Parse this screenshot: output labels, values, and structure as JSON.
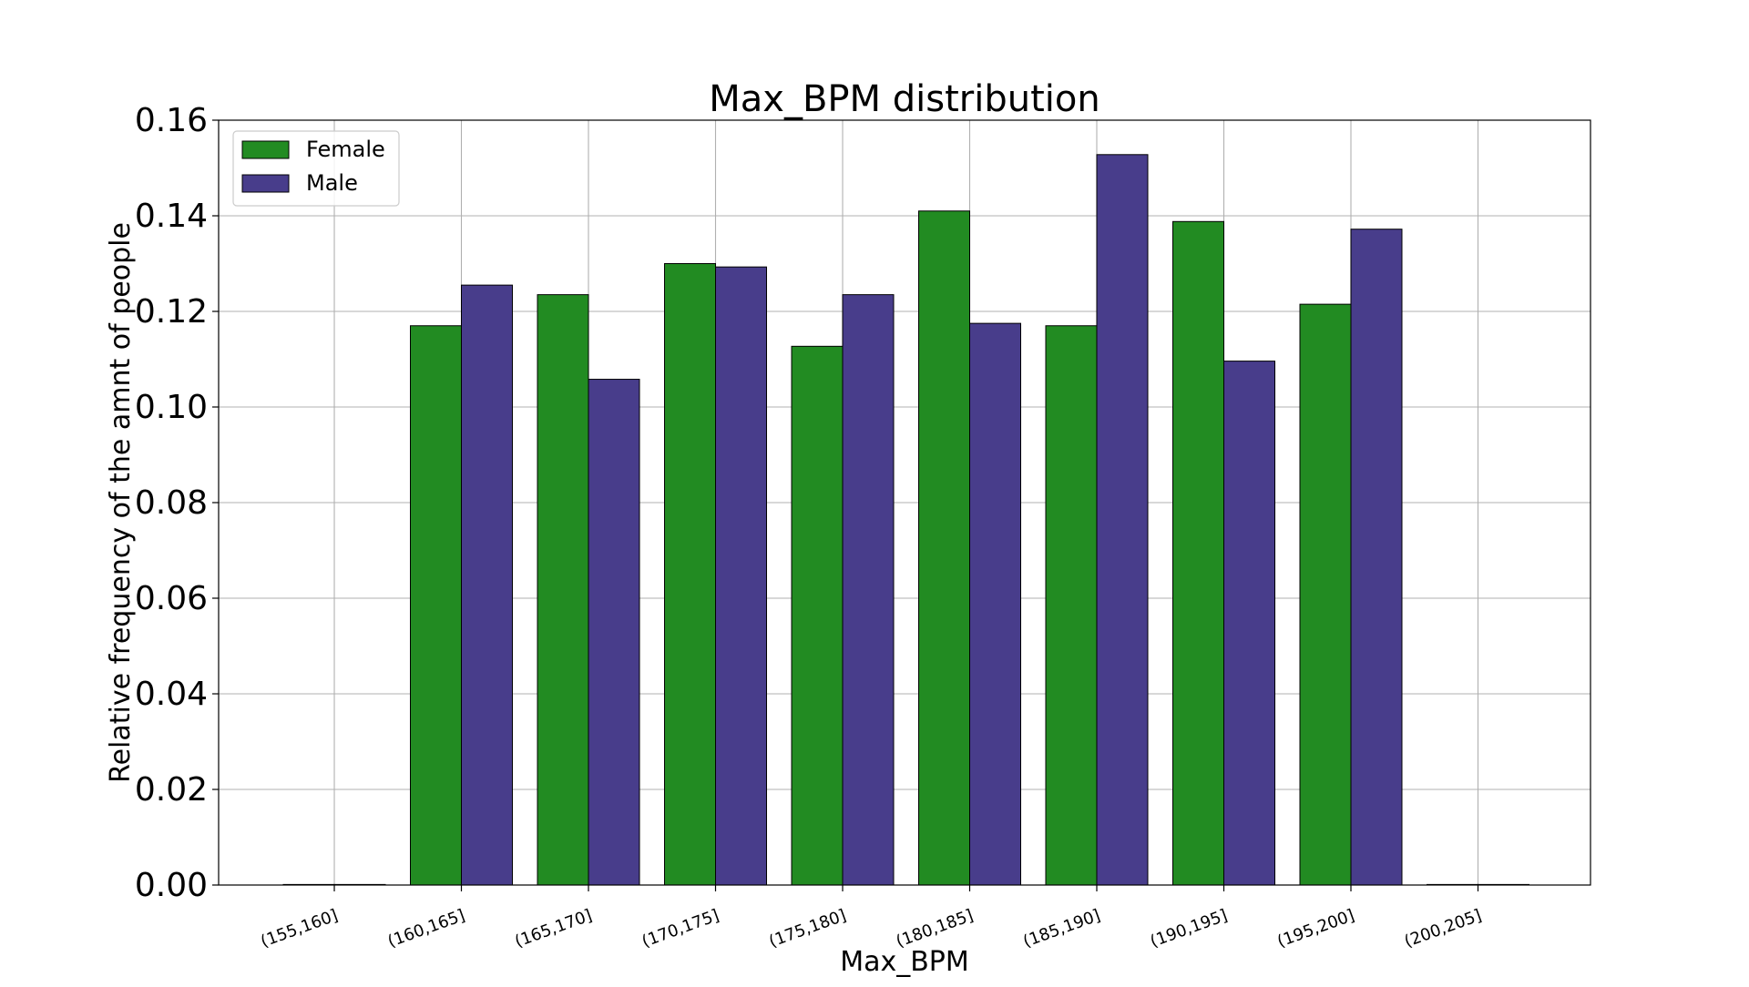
{
  "chart_data": {
    "type": "bar",
    "title": "Max_BPM distribution",
    "xlabel": "Max_BPM",
    "ylabel": "Relative frequency of the amnt of people",
    "categories": [
      "(155,160]",
      "(160,165]",
      "(165,170]",
      "(170,175]",
      "(175,180]",
      "(180,185]",
      "(185,190]",
      "(190,195]",
      "(195,200]",
      "(200,205]"
    ],
    "series": [
      {
        "name": "Female",
        "color": "#228b22",
        "values": [
          0.0,
          0.117,
          0.1235,
          0.13,
          0.1127,
          0.141,
          0.117,
          0.1388,
          0.1215,
          0.0
        ]
      },
      {
        "name": "Male",
        "color": "#483d8b",
        "values": [
          0.0,
          0.1255,
          0.1058,
          0.1293,
          0.1235,
          0.1175,
          0.1528,
          0.1096,
          0.1372,
          0.0
        ]
      }
    ],
    "ylim": [
      0,
      0.16
    ],
    "yticks": [
      "0.00",
      "0.02",
      "0.04",
      "0.06",
      "0.08",
      "0.10",
      "0.12",
      "0.14",
      "0.16"
    ],
    "grid": true,
    "legend_position": "upper-left"
  }
}
